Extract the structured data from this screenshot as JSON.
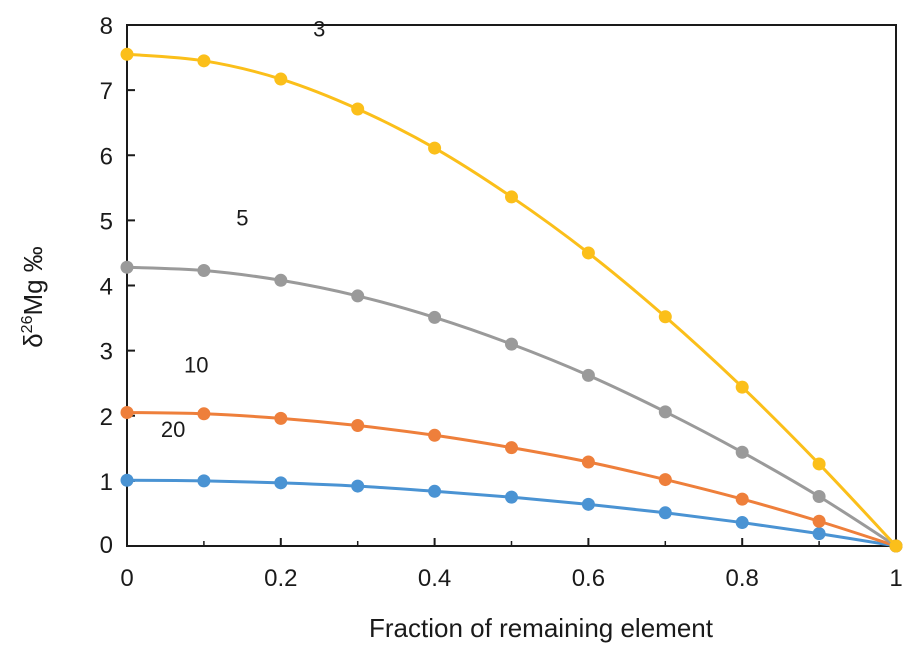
{
  "chart_data": {
    "type": "line",
    "xlabel": "Fraction of remaining element",
    "ylabel": {
      "prefix": "δ",
      "superscript": "26",
      "main": "Mg ‰"
    },
    "xlim": [
      0,
      1
    ],
    "ylim": [
      0,
      8
    ],
    "xticks": [
      0,
      0.2,
      0.4,
      0.6,
      0.8,
      1
    ],
    "xtick_labels": [
      "0",
      "0.2",
      "0.4",
      "0.6",
      "0.8",
      "1"
    ],
    "yticks": [
      0,
      1,
      2,
      3,
      4,
      5,
      6,
      7,
      8
    ],
    "ytick_labels": [
      "0",
      "1",
      "2",
      "3",
      "4",
      "5",
      "6",
      "7",
      "8"
    ],
    "grid": false,
    "x": [
      0,
      0.1,
      0.2,
      0.3,
      0.4,
      0.5,
      0.6,
      0.7,
      0.8,
      0.9,
      1.0
    ],
    "series": [
      {
        "label": "3",
        "color": "#fbbf1a",
        "values": [
          7.55,
          7.45,
          7.17,
          6.71,
          6.11,
          5.36,
          4.5,
          3.52,
          2.44,
          1.26,
          0
        ]
      },
      {
        "label": "5",
        "color": "#9a9a9a",
        "values": [
          4.28,
          4.23,
          4.08,
          3.84,
          3.51,
          3.1,
          2.62,
          2.06,
          1.44,
          0.76,
          0
        ]
      },
      {
        "label": "10",
        "color": "#ee7f3b",
        "values": [
          2.05,
          2.03,
          1.96,
          1.85,
          1.7,
          1.51,
          1.29,
          1.02,
          0.72,
          0.38,
          0
        ]
      },
      {
        "label": "20",
        "color": "#4a93d3",
        "values": [
          1.01,
          1.0,
          0.97,
          0.92,
          0.84,
          0.75,
          0.64,
          0.51,
          0.36,
          0.19,
          0
        ]
      }
    ]
  }
}
